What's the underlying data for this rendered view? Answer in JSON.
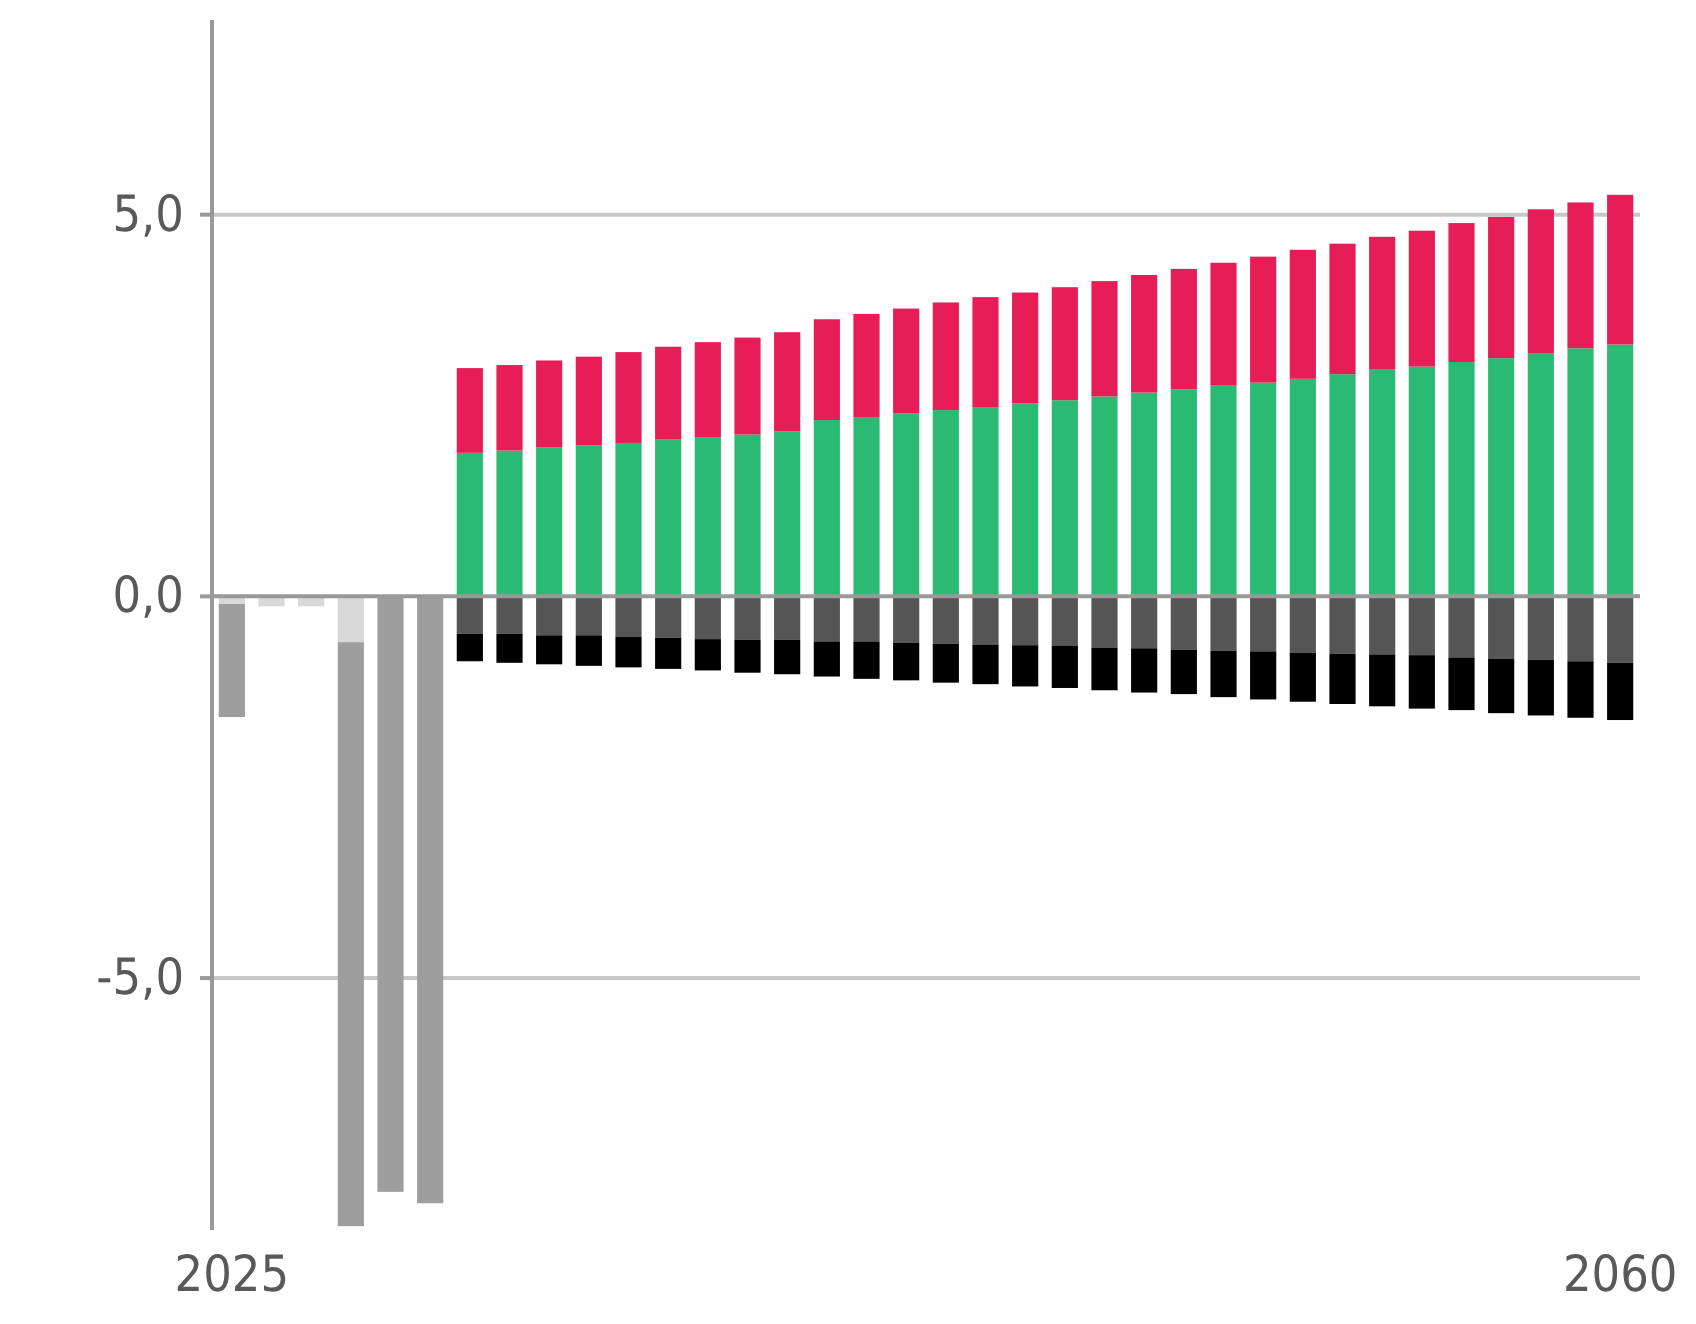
{
  "chart_data": {
    "type": "bar",
    "stacked": true,
    "grid": "y",
    "categories": [
      "2025",
      null,
      null,
      null,
      null,
      null,
      null,
      null,
      null,
      null,
      null,
      null,
      null,
      null,
      null,
      null,
      null,
      null,
      null,
      null,
      null,
      null,
      null,
      null,
      null,
      null,
      null,
      null,
      null,
      null,
      null,
      null,
      null,
      null,
      null,
      "2060"
    ],
    "ylim": [
      -8.3,
      7.55
    ],
    "yticks": [
      {
        "value": -5,
        "label": "-5,0"
      },
      {
        "value": 0,
        "label": "0,0"
      },
      {
        "value": 5,
        "label": "5,0"
      }
    ],
    "series": [
      {
        "color": "#d9d9d9",
        "values": [
          -0.1,
          -0.13,
          -0.13,
          -0.6,
          null,
          null,
          null,
          null,
          null,
          null,
          null,
          null,
          null,
          null,
          null,
          null,
          null,
          null,
          null,
          null,
          null,
          null,
          null,
          null,
          null,
          null,
          null,
          null,
          null,
          null,
          null,
          null,
          null,
          null,
          null,
          null
        ]
      },
      {
        "color": "#9e9e9e",
        "values": [
          -1.48,
          null,
          null,
          -7.65,
          -7.8,
          -7.95,
          null,
          null,
          null,
          null,
          null,
          null,
          null,
          null,
          null,
          null,
          null,
          null,
          null,
          null,
          null,
          null,
          null,
          null,
          null,
          null,
          null,
          null,
          null,
          null,
          null,
          null,
          null,
          null,
          null,
          null
        ]
      },
      {
        "color": "#2bba74",
        "values": [
          null,
          null,
          null,
          null,
          null,
          null,
          1.88,
          1.91,
          1.95,
          1.98,
          2.01,
          2.06,
          2.08,
          2.12,
          2.16,
          2.31,
          2.35,
          2.4,
          2.44,
          2.48,
          2.53,
          2.57,
          2.62,
          2.67,
          2.71,
          2.76,
          2.8,
          2.85,
          2.91,
          2.97,
          3.01,
          3.07,
          3.12,
          3.18,
          3.25,
          3.3
        ]
      },
      {
        "color": "#e71d57",
        "values": [
          null,
          null,
          null,
          null,
          null,
          null,
          1.11,
          1.12,
          1.14,
          1.16,
          1.19,
          1.21,
          1.25,
          1.27,
          1.3,
          1.32,
          1.35,
          1.37,
          1.41,
          1.44,
          1.45,
          1.48,
          1.51,
          1.54,
          1.58,
          1.61,
          1.65,
          1.69,
          1.71,
          1.74,
          1.78,
          1.82,
          1.85,
          1.89,
          1.91,
          1.96
        ]
      },
      {
        "color": "#555555",
        "values": [
          null,
          null,
          null,
          null,
          null,
          null,
          -0.49,
          -0.49,
          -0.51,
          -0.51,
          -0.53,
          -0.54,
          -0.56,
          -0.57,
          -0.57,
          -0.59,
          -0.59,
          -0.61,
          -0.62,
          -0.63,
          -0.64,
          -0.65,
          -0.67,
          -0.68,
          -0.7,
          -0.71,
          -0.72,
          -0.74,
          -0.75,
          -0.76,
          -0.77,
          -0.8,
          -0.82,
          -0.83,
          -0.85,
          -0.87
        ]
      },
      {
        "color": "#000000",
        "values": [
          null,
          null,
          null,
          null,
          null,
          null,
          -0.36,
          -0.38,
          -0.38,
          -0.4,
          -0.4,
          -0.41,
          -0.41,
          -0.43,
          -0.45,
          -0.46,
          -0.49,
          -0.49,
          -0.51,
          -0.52,
          -0.54,
          -0.55,
          -0.56,
          -0.58,
          -0.58,
          -0.61,
          -0.63,
          -0.64,
          -0.66,
          -0.68,
          -0.7,
          -0.69,
          -0.71,
          -0.73,
          -0.74,
          -0.75
        ]
      }
    ]
  }
}
